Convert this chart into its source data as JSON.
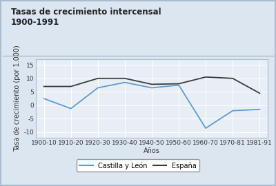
{
  "title": "Tasas de crecimiento intercensal\n1900-1991",
  "xlabel": "Años",
  "ylabel": "Tasa de crecimiento (por 1.000)",
  "x_labels": [
    "1900-10",
    "1910-20",
    "1920-30",
    "1930-40",
    "1940-50",
    "1950-60",
    "1960-70",
    "1970-81",
    "1981-91"
  ],
  "x_values": [
    0,
    1,
    2,
    3,
    4,
    5,
    6,
    7,
    8
  ],
  "castilla_leon": [
    2.5,
    -1.2,
    6.5,
    8.5,
    6.5,
    7.5,
    -8.5,
    -2.0,
    -1.5
  ],
  "espana": [
    7.0,
    7.0,
    10.0,
    10.0,
    7.8,
    8.0,
    10.5,
    10.0,
    4.5
  ],
  "castilla_color": "#5b9bd5",
  "espana_color": "#3a3a3a",
  "ylim": [
    -12,
    17
  ],
  "yticks": [
    -10,
    -5,
    0,
    5,
    10,
    15
  ],
  "bg_outer": "#dce6f0",
  "bg_plot": "#e8eef5",
  "border_color": "#aabcce",
  "title_fontsize": 8.5,
  "axis_label_fontsize": 7,
  "tick_fontsize": 6.5,
  "legend_fontsize": 7
}
